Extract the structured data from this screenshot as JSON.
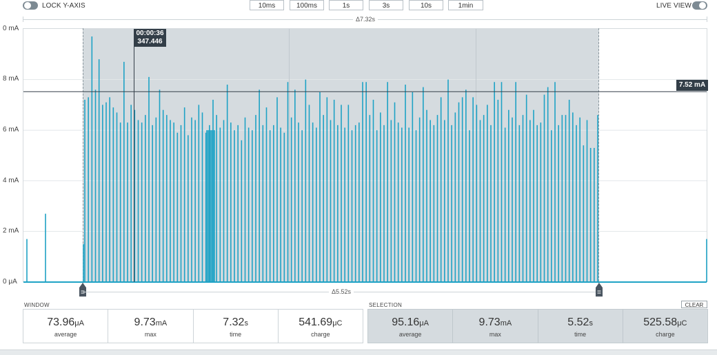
{
  "toolbar": {
    "lock_y_axis_label": "LOCK Y-AXIS",
    "live_view_label": "LIVE VIEW",
    "zoom_buttons": [
      "10ms",
      "100ms",
      "1s",
      "3s",
      "10s",
      "1min"
    ]
  },
  "chart_data": {
    "type": "line",
    "window_delta": "Δ7.32s",
    "selection_delta": "Δ5.52s",
    "yaxis_ticks": [
      "0 μA",
      "2 mA",
      "4 mA",
      "6 mA",
      "8 mA",
      "0 mA"
    ],
    "ylim_mA": [
      0,
      10
    ],
    "cursor": {
      "time": "00:00:36",
      "value": "347.446"
    },
    "threshold_label": "7.52 mA",
    "threshold_mA": 7.52,
    "series": [
      {
        "pulses_mA": [
          1.7,
          2.7,
          1.5,
          7.2,
          7.3,
          9.7,
          7.6,
          8.8,
          7.0,
          7.1,
          7.3,
          6.9,
          6.7,
          6.3,
          8.7,
          6.3,
          7.0,
          6.8,
          6.4,
          6.3,
          6.6,
          8.1,
          6.2,
          6.5,
          7.6,
          6.8,
          6.6,
          6.4,
          6.3,
          5.9,
          6.2,
          6.9,
          5.8,
          6.5,
          6.4,
          7.0,
          6.7,
          5.9,
          6.2,
          7.2,
          6.6,
          6.1,
          6.4,
          7.8,
          6.3,
          6.0,
          6.2,
          5.6,
          6.5,
          6.1,
          6.0,
          6.6,
          7.6,
          6.2,
          6.9,
          6.0,
          6.2,
          7.3,
          6.1,
          5.9,
          7.9,
          6.5,
          7.6,
          6.3,
          6.0,
          8.0,
          7.0,
          6.3,
          6.1,
          7.5,
          6.6,
          7.3,
          6.4,
          7.2,
          6.2,
          7.0,
          6.1,
          7.0,
          6.0,
          6.2,
          6.3,
          7.9,
          7.9,
          6.6,
          7.2,
          6.0,
          6.7,
          6.2,
          7.9,
          6.4,
          7.1,
          6.3,
          6.1,
          7.8,
          6.1,
          7.5,
          6.0,
          6.5,
          7.7,
          6.8,
          6.4,
          6.2,
          6.6,
          7.3,
          6.4,
          8.0,
          6.2,
          6.7,
          7.1,
          7.3,
          7.6,
          6.0,
          7.3,
          7.0,
          6.4,
          6.6,
          7.0,
          6.2,
          7.9,
          7.2,
          7.9,
          6.1,
          6.8,
          6.5,
          7.9,
          6.2,
          6.6,
          7.4,
          6.4,
          6.8,
          6.2,
          6.3,
          7.4,
          7.7,
          6.0,
          7.9,
          6.2,
          6.6,
          6.6,
          7.2,
          6.7,
          6.2,
          6.5,
          5.4,
          6.4,
          5.3,
          5.3,
          6.6,
          1.7
        ]
      }
    ]
  },
  "window_stats": {
    "label": "WINDOW",
    "average": {
      "value": "73.96",
      "unit": "μA",
      "label": "average"
    },
    "max": {
      "value": "9.73",
      "unit": "mA",
      "label": "max"
    },
    "time": {
      "value": "7.32",
      "unit": "s",
      "label": "time"
    },
    "charge": {
      "value": "541.69",
      "unit": "μC",
      "label": "charge"
    }
  },
  "selection_stats": {
    "label": "SELECTION",
    "clear_label": "CLEAR",
    "average": {
      "value": "95.16",
      "unit": "μA",
      "label": "average"
    },
    "max": {
      "value": "9.73",
      "unit": "mA",
      "label": "max"
    },
    "time": {
      "value": "5.52",
      "unit": "s",
      "label": "time"
    },
    "charge": {
      "value": "525.58",
      "unit": "μC",
      "label": "charge"
    }
  },
  "colors": {
    "signal": "#1ea2c5",
    "selection_fill": "#d5dbdf",
    "marker_bg": "#333e48",
    "toggle": "#7d8a93"
  }
}
